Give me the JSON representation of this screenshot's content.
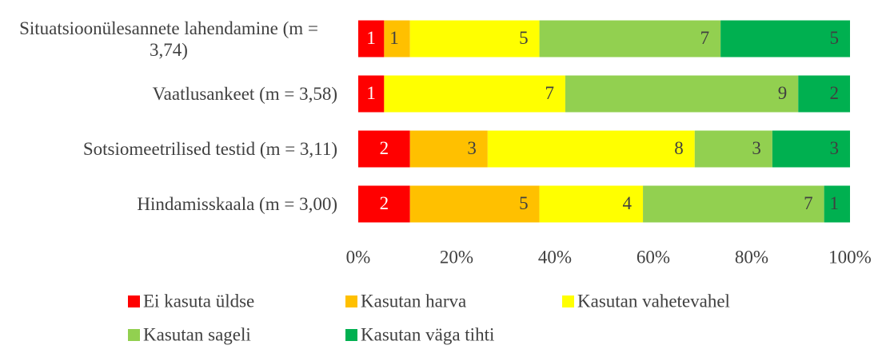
{
  "chart_data": {
    "type": "bar",
    "orientation": "horizontal",
    "stacked": true,
    "percent_stacked": true,
    "categories": [
      "Situatsioonülesannete lahendamine (m = 3,74)",
      "Vaatlusankeet (m = 3,58)",
      "Sotsiomeetrilised testid (m = 3,11)",
      "Hindamisskaala (m = 3,00)"
    ],
    "series": [
      {
        "name": "Ei kasuta üldse",
        "color": "#ff0000",
        "values": [
          1,
          1,
          2,
          2
        ]
      },
      {
        "name": "Kasutan harva",
        "color": "#ffc000",
        "values": [
          1,
          0,
          3,
          5
        ]
      },
      {
        "name": "Kasutan vahetevahel",
        "color": "#ffff00",
        "values": [
          5,
          7,
          8,
          4
        ]
      },
      {
        "name": "Kasutan sageli",
        "color": "#92d050",
        "values": [
          7,
          9,
          3,
          7
        ]
      },
      {
        "name": "Kasutan väga tihti",
        "color": "#00b050",
        "values": [
          5,
          2,
          3,
          1
        ]
      }
    ],
    "xlim": [
      0,
      100
    ],
    "xticks": [
      {
        "value": 0,
        "label": "0%"
      },
      {
        "value": 20,
        "label": "20%"
      },
      {
        "value": 40,
        "label": "40%"
      },
      {
        "value": 60,
        "label": "60%"
      },
      {
        "value": 80,
        "label": "80%"
      },
      {
        "value": 100,
        "label": "100%"
      }
    ],
    "legend": "bottom"
  }
}
